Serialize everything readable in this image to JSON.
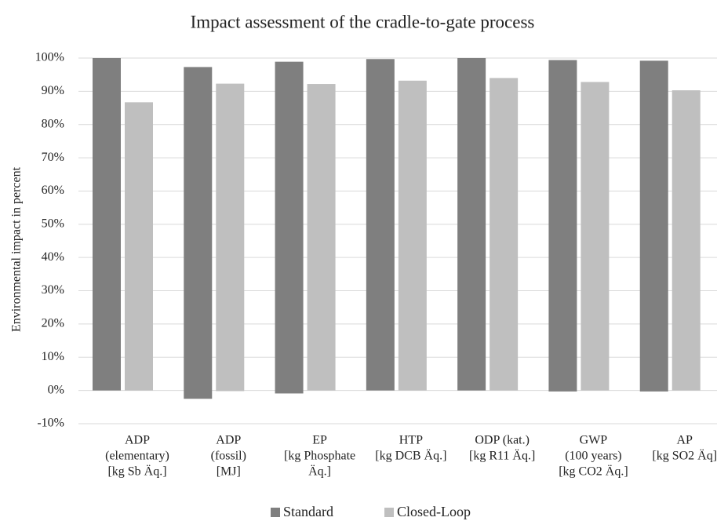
{
  "chart_data": {
    "type": "bar",
    "title": "Impact assessment of the cradle-to-gate process",
    "y_label": "Environmental impact in percent",
    "categories": [
      [
        "ADP",
        "(elementary)",
        "[kg Sb Äq.]"
      ],
      [
        "ADP",
        "(fossil)",
        "[MJ]"
      ],
      [
        "EP",
        "[kg Phosphate",
        "Äq.]"
      ],
      [
        "HTP",
        "[kg DCB Äq.]"
      ],
      [
        "ODP (kat.)",
        "[kg R11 Äq.]"
      ],
      [
        "GWP",
        "(100 years)",
        "[kg CO2 Äq.]"
      ],
      [
        "AP",
        "[kg SO2 Äq]"
      ]
    ],
    "series": [
      {
        "name": "Standard",
        "color": "#7f7f7f",
        "values": [
          100,
          97.3,
          98.9,
          99.7,
          100,
          99.4,
          99.2
        ],
        "base": [
          0,
          -2.5,
          -0.9,
          0,
          0,
          -0.3,
          -0.3
        ]
      },
      {
        "name": "Closed-Loop",
        "color": "#bfbfbf",
        "values": [
          86.7,
          92.3,
          92.2,
          93.2,
          94.0,
          92.8,
          90.3
        ],
        "base": [
          0,
          -0.2,
          0,
          0,
          0,
          0,
          0
        ]
      }
    ],
    "ylim": [
      -10,
      100
    ],
    "yticks": [
      {
        "value": -10,
        "label": "-10%"
      },
      {
        "value": 0,
        "label": "0%"
      },
      {
        "value": 10,
        "label": "10%"
      },
      {
        "value": 20,
        "label": "20%"
      },
      {
        "value": 30,
        "label": "30%"
      },
      {
        "value": 40,
        "label": "40%"
      },
      {
        "value": 50,
        "label": "50%"
      },
      {
        "value": 60,
        "label": "60%"
      },
      {
        "value": 70,
        "label": "70%"
      },
      {
        "value": 80,
        "label": "80%"
      },
      {
        "value": 90,
        "label": "90%"
      },
      {
        "value": 100,
        "label": "100%"
      }
    ],
    "legend": "bottom"
  }
}
